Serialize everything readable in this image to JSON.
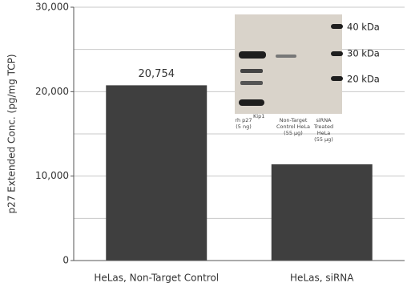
{
  "chart_data": {
    "type": "bar",
    "y_label": "p27 Extended Conc. (pg/mg TCP)",
    "categories": [
      "HeLas, Non-Target Control",
      "HeLas, siRNA"
    ],
    "values": [
      20754,
      11400
    ],
    "value_labels": [
      "20,754",
      null
    ],
    "color": "#3f3f3f",
    "ylim": [
      0,
      30000
    ],
    "yticks": [
      0,
      {
        "value": 10000,
        "label": "10,000"
      },
      {
        "value": 20000,
        "label": "20,000"
      },
      {
        "value": 30000,
        "label": "30,000"
      }
    ],
    "minor_grid": [
      5000,
      15000,
      25000
    ],
    "grid": true,
    "inset": {
      "markers": [
        "40 kDa",
        "30 kDa",
        "20 kDa"
      ],
      "lanes": [
        {
          "text": [
            "rh p27",
            "(5 ng)"
          ],
          "superscript": "Kip1"
        },
        {
          "text": [
            "Non-Target",
            "Control HeLa",
            "(55 µg)"
          ]
        },
        {
          "text": [
            "siRNA",
            "Treated",
            "HeLa",
            "(55 µg)"
          ]
        }
      ]
    }
  }
}
